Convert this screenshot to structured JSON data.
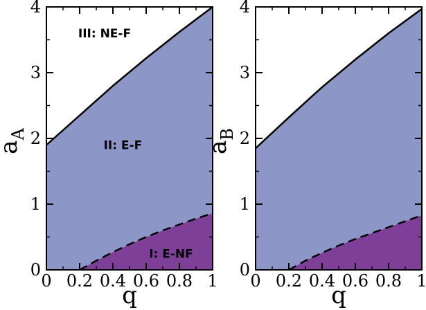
{
  "colors": {
    "region_I": "#7e3f98",
    "region_II": "#8c97c8",
    "region_III": "#ffffff",
    "line": "#000000"
  },
  "chart_data": [
    {
      "type": "area",
      "xlabel": "q",
      "ylabel": "a",
      "ylabel_sub": "A",
      "xlim": [
        0,
        1
      ],
      "ylim": [
        0,
        4
      ],
      "xticks": [
        "0",
        "0.2",
        "0.4",
        "0.6",
        "0.8",
        "1"
      ],
      "yticks": [
        "0",
        "1",
        "2",
        "3",
        "4"
      ],
      "upper_boundary": {
        "x": [
          0,
          0.2,
          0.4,
          0.6,
          0.8,
          1.0
        ],
        "y": [
          1.9,
          2.35,
          2.8,
          3.22,
          3.62,
          4.0
        ]
      },
      "lower_boundary": {
        "x": [
          0.2,
          0.3,
          0.4,
          0.5,
          0.6,
          0.7,
          0.8,
          0.9,
          1.0
        ],
        "y": [
          0.0,
          0.14,
          0.27,
          0.39,
          0.5,
          0.6,
          0.69,
          0.78,
          0.86
        ]
      },
      "region_labels": [
        {
          "text": "III: NE-F",
          "x": 0.35,
          "y": 3.6
        },
        {
          "text": "II: E-F",
          "x": 0.46,
          "y": 1.9
        },
        {
          "text": "I: E-NF",
          "x": 0.75,
          "y": 0.25
        }
      ]
    },
    {
      "type": "area",
      "xlabel": "q",
      "ylabel": "a",
      "ylabel_sub": "B",
      "xlim": [
        0,
        1
      ],
      "ylim": [
        0,
        4
      ],
      "xticks": [
        "0",
        "0.2",
        "0.4",
        "0.6",
        "0.8",
        "1"
      ],
      "yticks": [
        "0",
        "1",
        "2",
        "3",
        "4"
      ],
      "upper_boundary": {
        "x": [
          0,
          0.2,
          0.4,
          0.6,
          0.8,
          1.0
        ],
        "y": [
          1.85,
          2.32,
          2.78,
          3.2,
          3.6,
          3.97
        ]
      },
      "lower_boundary": {
        "x": [
          0.2,
          0.3,
          0.4,
          0.5,
          0.6,
          0.7,
          0.8,
          0.9,
          1.0
        ],
        "y": [
          0.0,
          0.14,
          0.26,
          0.37,
          0.47,
          0.56,
          0.65,
          0.74,
          0.83
        ]
      },
      "region_labels": []
    }
  ]
}
